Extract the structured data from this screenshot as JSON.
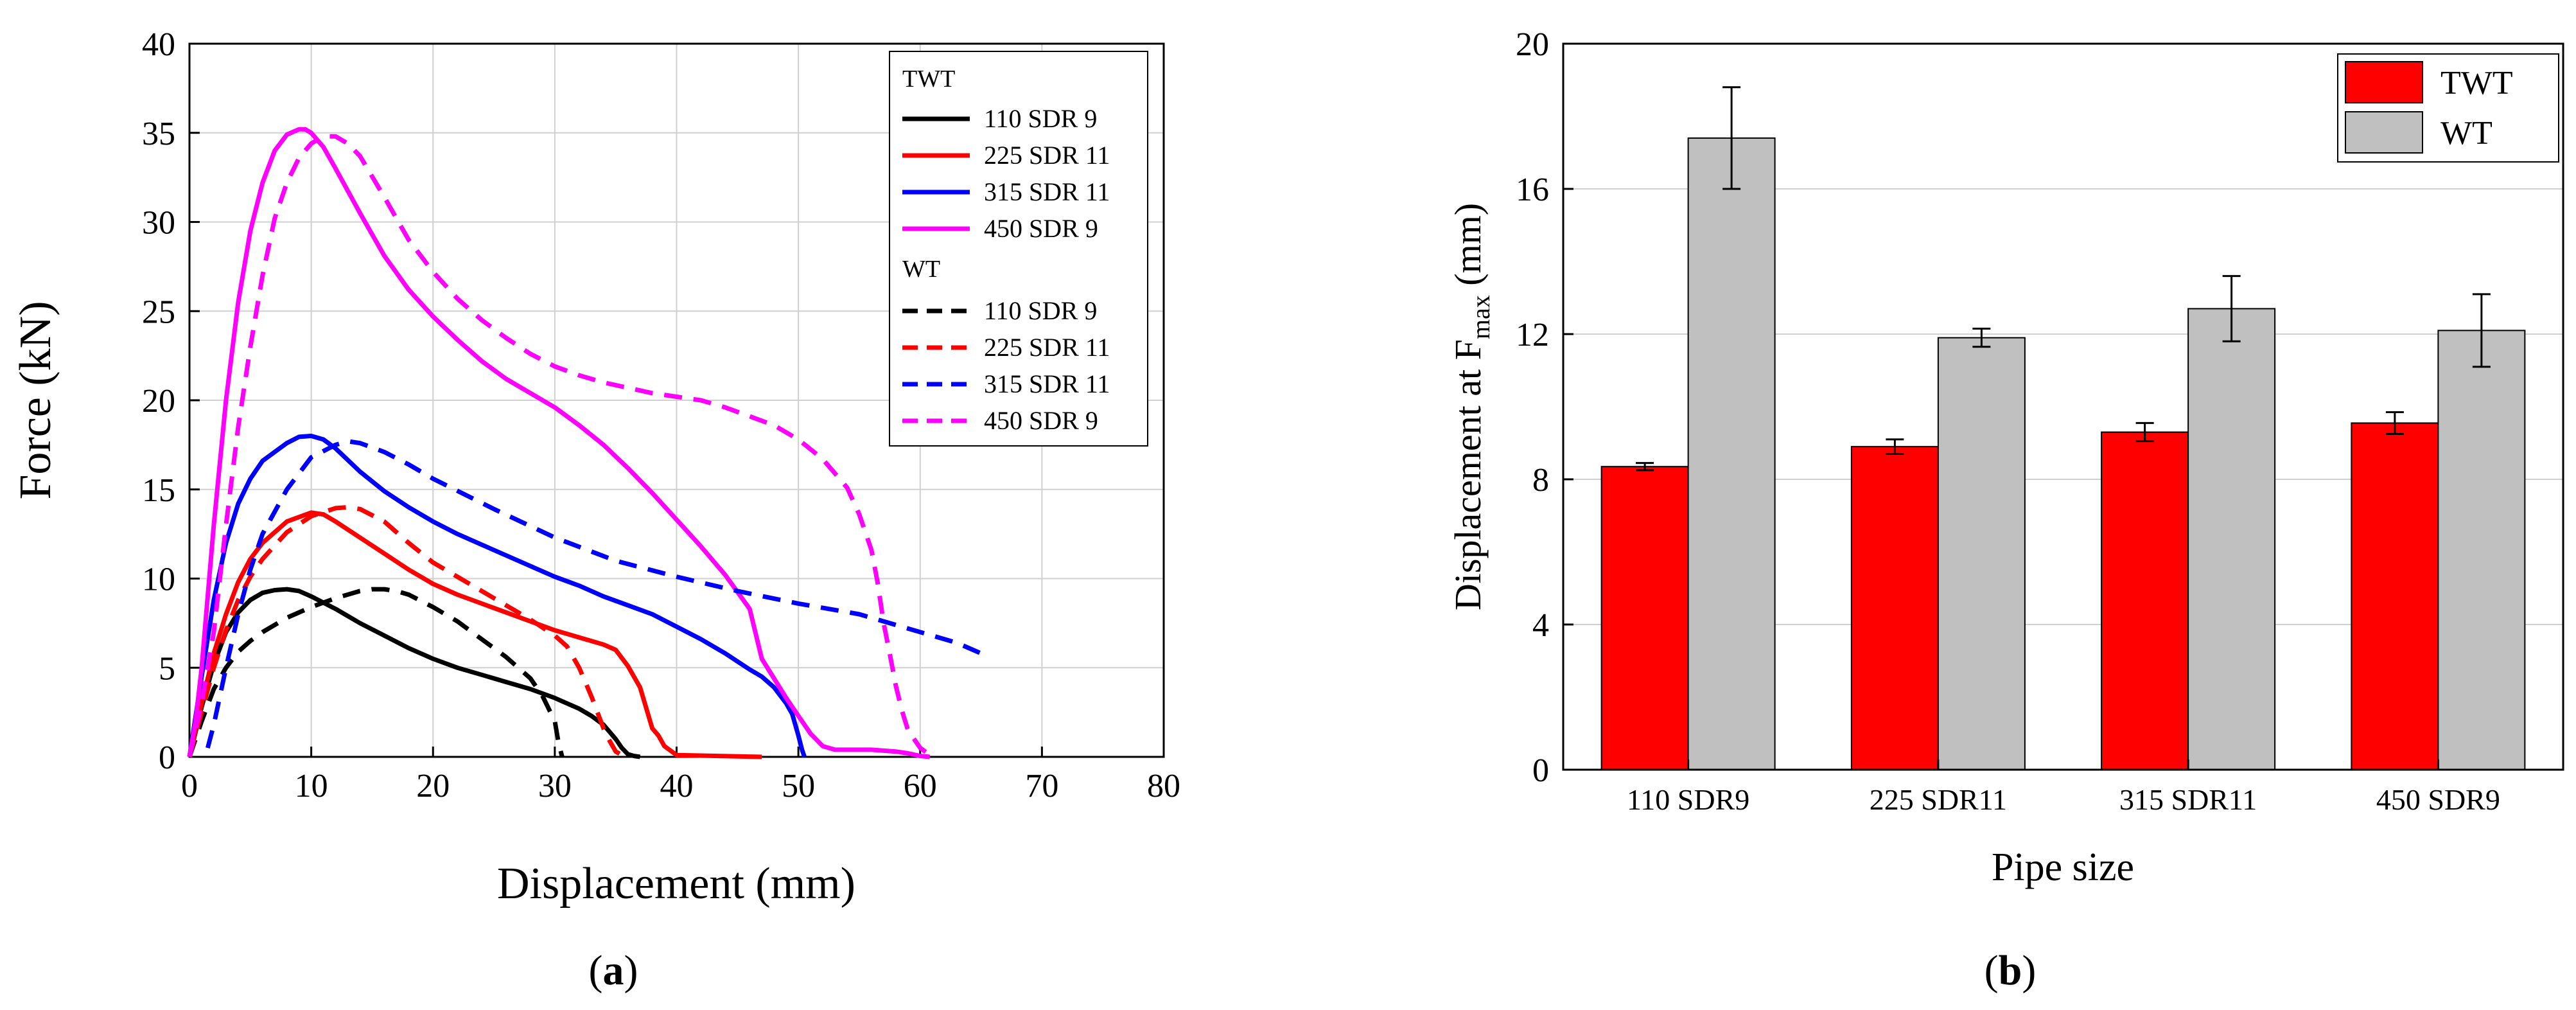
{
  "chart_data": [
    {
      "type": "line",
      "panel_label": "(a)",
      "panel_letter": "a",
      "xlabel": "Displacement (mm)",
      "ylabel": "Force (kN)",
      "xlim": [
        0,
        80
      ],
      "ylim": [
        0,
        40
      ],
      "xticks": [
        "0",
        "10",
        "20",
        "30",
        "40",
        "50",
        "60",
        "70",
        "80"
      ],
      "yticks": [
        "0",
        "5",
        "10",
        "15",
        "20",
        "25",
        "30",
        "35",
        "40"
      ],
      "grid": true,
      "legend_position": "top-right",
      "legend_groups": [
        {
          "name": "TWT",
          "style": "solid"
        },
        {
          "name": "WT",
          "style": "dashed"
        }
      ],
      "series": [
        {
          "name": "110 SDR 9",
          "group": "TWT",
          "style": "solid",
          "color": "#000000",
          "x": [
            0,
            1,
            2,
            3,
            4,
            5,
            6,
            7,
            8,
            9,
            10,
            12,
            14,
            16,
            18,
            20,
            22,
            24,
            26,
            28,
            30,
            32,
            33,
            34,
            35,
            35.5,
            36,
            36.5,
            37
          ],
          "y": [
            0,
            2.8,
            5.2,
            7,
            8.1,
            8.8,
            9.2,
            9.35,
            9.4,
            9.3,
            9.0,
            8.3,
            7.5,
            6.8,
            6.1,
            5.5,
            5.0,
            4.6,
            4.2,
            3.8,
            3.3,
            2.7,
            2.3,
            1.8,
            1.0,
            0.5,
            0.15,
            0.05,
            0
          ]
        },
        {
          "name": "225 SDR 11",
          "group": "TWT",
          "style": "solid",
          "color": "#ff0000",
          "x": [
            0,
            1,
            2,
            3,
            4,
            5,
            6,
            8,
            10,
            11,
            12,
            14,
            16,
            18,
            20,
            22,
            24,
            26,
            28,
            30,
            32,
            34,
            35,
            36,
            37,
            38,
            38.5,
            39,
            40,
            45,
            47
          ],
          "y": [
            0,
            3,
            5.8,
            8,
            9.8,
            11.1,
            12.0,
            13.2,
            13.7,
            13.6,
            13.2,
            12.3,
            11.4,
            10.5,
            9.7,
            9.1,
            8.6,
            8.1,
            7.6,
            7.1,
            6.7,
            6.3,
            6.0,
            5.1,
            3.9,
            1.6,
            1.2,
            0.6,
            0.1,
            0.03,
            0
          ]
        },
        {
          "name": "315 SDR 11",
          "group": "TWT",
          "style": "solid",
          "color": "#0000ff",
          "x": [
            0,
            1,
            2,
            3,
            4,
            5,
            6,
            8,
            9,
            10,
            11,
            12,
            14,
            16,
            18,
            20,
            22,
            24,
            26,
            28,
            30,
            32,
            34,
            36,
            38,
            40,
            42,
            44,
            46,
            47,
            48,
            49,
            49.5,
            50,
            50.3,
            50.5
          ],
          "y": [
            0,
            4.5,
            8.8,
            12,
            14.2,
            15.6,
            16.6,
            17.6,
            17.95,
            18.0,
            17.8,
            17.3,
            16.0,
            14.9,
            14.0,
            13.2,
            12.5,
            11.9,
            11.3,
            10.7,
            10.1,
            9.6,
            9.0,
            8.5,
            8.0,
            7.3,
            6.6,
            5.8,
            4.9,
            4.5,
            3.9,
            3.0,
            2.4,
            1.2,
            0.4,
            0
          ]
        },
        {
          "name": "450 SDR 9",
          "group": "TWT",
          "style": "solid",
          "color": "#ff00ff",
          "x": [
            0,
            0.5,
            1,
            1.5,
            2,
            3,
            4,
            5,
            6,
            7,
            8,
            9,
            9.5,
            10,
            11,
            12,
            14,
            16,
            18,
            20,
            22,
            24,
            26,
            28,
            30,
            32,
            34,
            36,
            38,
            40,
            42,
            44,
            46,
            47,
            48,
            49,
            50,
            51,
            52,
            53,
            54,
            56,
            58,
            59,
            60,
            60.8
          ],
          "y": [
            0,
            2,
            5,
            9,
            13,
            20,
            25.5,
            29.5,
            32.2,
            34,
            34.9,
            35.2,
            35.2,
            35.0,
            34.2,
            33.0,
            30.5,
            28.1,
            26.2,
            24.7,
            23.4,
            22.2,
            21.2,
            20.4,
            19.6,
            18.6,
            17.5,
            16.2,
            14.8,
            13.3,
            11.8,
            10.2,
            8.3,
            5.5,
            4.4,
            3.3,
            2.3,
            1.3,
            0.6,
            0.4,
            0.4,
            0.4,
            0.3,
            0.2,
            0.05,
            0
          ]
        },
        {
          "name": "110 SDR 9",
          "group": "WT",
          "style": "dashed",
          "color": "#000000",
          "x": [
            0,
            1,
            2,
            3,
            4,
            5,
            6,
            8,
            10,
            12,
            14,
            15,
            16,
            17,
            18,
            20,
            22,
            24,
            26,
            28,
            29,
            30,
            30.3,
            30.6
          ],
          "y": [
            0,
            2,
            3.8,
            5.0,
            5.9,
            6.5,
            7.0,
            7.8,
            8.4,
            8.9,
            9.3,
            9.4,
            9.4,
            9.3,
            9.1,
            8.4,
            7.6,
            6.6,
            5.6,
            4.4,
            3.4,
            2.0,
            0.8,
            0
          ]
        },
        {
          "name": "225 SDR 11",
          "group": "WT",
          "style": "dashed",
          "color": "#ff0000",
          "x": [
            0,
            1,
            2,
            3,
            4,
            5,
            6,
            8,
            10,
            12,
            13,
            14,
            16,
            18,
            20,
            22,
            24,
            26,
            28,
            30,
            31,
            32,
            33,
            34,
            34.5,
            35,
            35.5,
            36
          ],
          "y": [
            0,
            2.5,
            5,
            7.1,
            8.8,
            10.1,
            11.1,
            12.6,
            13.5,
            13.95,
            14.0,
            13.9,
            13.2,
            12.0,
            10.9,
            10.1,
            9.3,
            8.5,
            7.7,
            6.8,
            6.2,
            5.0,
            3.4,
            1.6,
            0.9,
            0.3,
            0.1,
            0
          ]
        },
        {
          "name": "315 SDR 11",
          "group": "WT",
          "style": "dashed",
          "color": "#0000ff",
          "x": [
            1.5,
            2,
            3,
            4,
            5,
            6,
            8,
            10,
            12,
            13,
            14,
            16,
            18,
            20,
            25,
            30,
            35,
            40,
            45,
            50,
            55,
            60,
            63,
            65
          ],
          "y": [
            0.5,
            1.8,
            5.0,
            8.0,
            10.5,
            12.5,
            15.0,
            16.8,
            17.5,
            17.7,
            17.6,
            17.1,
            16.4,
            15.6,
            13.9,
            12.3,
            11.0,
            10.1,
            9.3,
            8.6,
            8.0,
            7.0,
            6.4,
            5.8
          ]
        },
        {
          "name": "450 SDR 9",
          "group": "WT",
          "style": "dashed",
          "color": "#ff00ff",
          "x": [
            0,
            1,
            2,
            3,
            4,
            5,
            6,
            7,
            8,
            9,
            10,
            11,
            12,
            13,
            14,
            16,
            18,
            20,
            22,
            24,
            26,
            28,
            30,
            32,
            34,
            36,
            38,
            40,
            42,
            44,
            46,
            48,
            50,
            52,
            54,
            55,
            56,
            56.5,
            57,
            57.5,
            58,
            58.5,
            59,
            60,
            61
          ],
          "y": [
            0,
            3,
            7,
            13,
            18.5,
            23,
            27,
            30.2,
            32.2,
            33.6,
            34.4,
            34.8,
            34.8,
            34.4,
            33.7,
            31.4,
            29.0,
            27.2,
            25.7,
            24.5,
            23.5,
            22.6,
            21.9,
            21.4,
            21.0,
            20.7,
            20.4,
            20.2,
            20.0,
            19.6,
            19.1,
            18.6,
            17.8,
            16.7,
            15.1,
            13.6,
            11.6,
            9.8,
            7.5,
            5.8,
            4.0,
            2.6,
            1.5,
            0.5,
            0
          ]
        }
      ]
    },
    {
      "type": "bar",
      "panel_label": "(b)",
      "panel_letter": "b",
      "xlabel": "Pipe size",
      "ylabel_main": "Displacement at F",
      "ylabel_sub": "max",
      "ylabel_tail": " (mm)",
      "ylim": [
        0,
        20
      ],
      "yticks": [
        "0",
        "4",
        "8",
        "12",
        "16",
        "20"
      ],
      "grid": true,
      "legend_position": "top-right",
      "categories": [
        "110 SDR9",
        "225 SDR11",
        "315 SDR11",
        "450 SDR9"
      ],
      "series": [
        {
          "name": "TWT",
          "color": "#ff0000",
          "values": [
            8.35,
            8.9,
            9.3,
            9.55
          ],
          "errors": [
            0.1,
            0.2,
            0.25,
            0.3
          ]
        },
        {
          "name": "WT",
          "color": "#c0c0c0",
          "values": [
            17.4,
            11.9,
            12.7,
            12.1
          ],
          "errors": [
            1.4,
            0.25,
            0.9,
            1.0
          ]
        }
      ]
    }
  ]
}
